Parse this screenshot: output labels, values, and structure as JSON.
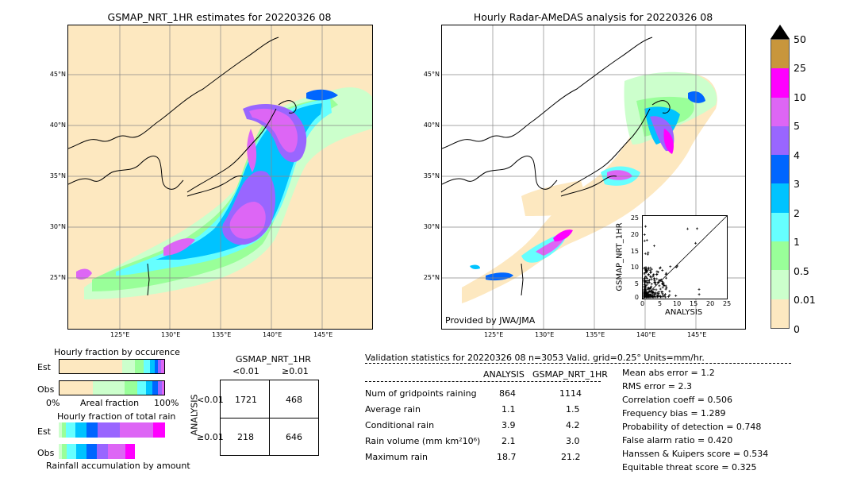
{
  "left_map": {
    "title": "GSMAP_NRT_1HR estimates for 20220326 08",
    "lat_labels": [
      "45°N",
      "40°N",
      "35°N",
      "30°N",
      "25°N"
    ],
    "lon_labels": [
      "125°E",
      "130°E",
      "135°E",
      "140°E",
      "145°E"
    ]
  },
  "right_map": {
    "title": "Hourly Radar-AMeDAS analysis for 20220326 08",
    "lat_labels": [
      "45°N",
      "40°N",
      "35°N",
      "30°N",
      "25°N"
    ],
    "lon_labels": [
      "125°E",
      "130°E",
      "135°E",
      "140°E",
      "145°E"
    ],
    "credit": "Provided by JWA/JMA"
  },
  "colorbar": {
    "labels": [
      "50",
      "25",
      "10",
      "5",
      "4",
      "3",
      "2",
      "1",
      "0.5",
      "0.01",
      "0"
    ],
    "colors": [
      "#c8963c",
      "#ff00ff",
      "#dd66f5",
      "#9966ff",
      "#0066ff",
      "#00c3ff",
      "#66ffff",
      "#99ff99",
      "#ccffcc",
      "#fde8c0"
    ],
    "extend_color": "#000000"
  },
  "scatter": {
    "xlabel": "ANALYSIS",
    "ylabel": "GSMAP_NRT_1HR",
    "ticks": [
      "0",
      "5",
      "10",
      "15",
      "20",
      "25"
    ]
  },
  "fraction_occurrence": {
    "title": "Hourly fraction by occurence",
    "rows": [
      "Est",
      "Obs"
    ],
    "axis_left": "0%",
    "axis_mid": "Areal fraction",
    "axis_right": "100%"
  },
  "fraction_total": {
    "title": "Hourly fraction of total rain",
    "rows": [
      "Est",
      "Obs"
    ],
    "footer": "Rainfall accumulation by amount"
  },
  "contingency": {
    "title": "GSMAP_NRT_1HR",
    "col_lt": "<0.01",
    "col_ge": "≥0.01",
    "row_axis": "ANALYSIS",
    "row_lt": "<0.01",
    "row_ge": "≥0.01",
    "cells": [
      "1721",
      "468",
      "218",
      "646"
    ]
  },
  "validation": {
    "header": "Validation statistics for 20220326 08  n=3053 Valid. grid=0.25° Units=mm/hr.",
    "col_analysis": "ANALYSIS",
    "col_gsmap": "GSMAP_NRT_1HR",
    "rows": [
      {
        "label": "Num of gridpoints raining",
        "analysis": "864",
        "gsmap": "1114"
      },
      {
        "label": "Average rain",
        "analysis": "1.1",
        "gsmap": "1.5"
      },
      {
        "label": "Conditional rain",
        "analysis": "3.9",
        "gsmap": "4.2"
      },
      {
        "label": "Rain volume (mm km²10⁶)",
        "analysis": "2.1",
        "gsmap": "3.0"
      },
      {
        "label": "Maximum rain",
        "analysis": "18.7",
        "gsmap": "21.2"
      }
    ],
    "scores": [
      "Mean abs error =    1.2",
      "RMS error =    2.3",
      "Correlation coeff =  0.506",
      "Frequency bias =  1.289",
      "Probability of detection =  0.748",
      "False alarm ratio =  0.420",
      "Hanssen & Kuipers score =  0.534",
      "Equitable threat score =  0.325"
    ]
  }
}
